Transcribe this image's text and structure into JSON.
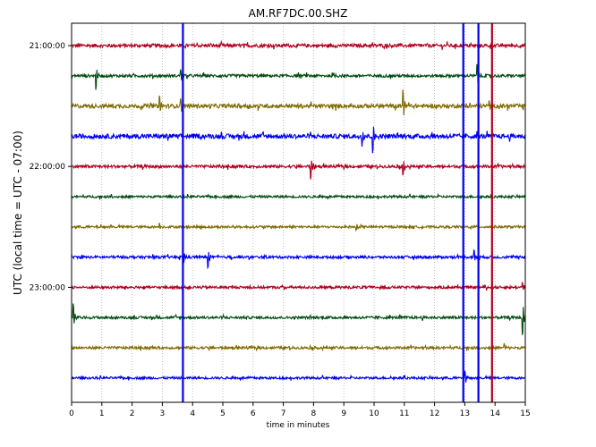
{
  "chart_data": {
    "type": "line",
    "title": "AM.RF7DC.00.SHZ",
    "xlabel": "time in minutes",
    "ylabel": "UTC (local time = UTC - 07:00)",
    "xlim": [
      0,
      15
    ],
    "x_ticks": [
      "0",
      "1",
      "2",
      "3",
      "4",
      "5",
      "6",
      "7",
      "8",
      "9",
      "10",
      "11",
      "12",
      "13",
      "14",
      "15"
    ],
    "y_ticks": [
      "21:00:00",
      "22:00:00",
      "23:00:00"
    ],
    "grid": "vertical dotted",
    "series_colors": [
      "#b1001e",
      "#004b10",
      "#7f6a00",
      "#0000f0"
    ],
    "traces": [
      {
        "row": 0,
        "color": "#b1001e",
        "baseline_noise": 0.12,
        "events": []
      },
      {
        "row": 1,
        "color": "#004b10",
        "baseline_noise": 0.1,
        "events": [
          {
            "t": 0.8,
            "amp": -0.9
          },
          {
            "t": 1.8,
            "amp": 0
          },
          {
            "t": 3.6,
            "amp": 0.5
          },
          {
            "t": 11.4,
            "amp": 0
          },
          {
            "t": 13.4,
            "amp": 0.8
          }
        ]
      },
      {
        "row": 2,
        "color": "#7f6a00",
        "baseline_noise": 0.14,
        "events": [
          {
            "t": 2.9,
            "amp": 0.7
          },
          {
            "t": 3.6,
            "amp": 0.6
          },
          {
            "t": 10.95,
            "amp": 1.2
          },
          {
            "t": 13.8,
            "amp": 0.3
          }
        ]
      },
      {
        "row": 3,
        "color": "#0000f0",
        "baseline_noise": 0.16,
        "events": [
          {
            "t": 9.6,
            "amp": -0.6
          },
          {
            "t": 9.95,
            "amp": -1.1
          }
        ]
      },
      {
        "row": 4,
        "color": "#b1001e",
        "baseline_noise": 0.1,
        "events": [
          {
            "t": 7.9,
            "amp": -0.9
          },
          {
            "t": 10.95,
            "amp": -0.6
          }
        ]
      },
      {
        "row": 5,
        "color": "#004b10",
        "baseline_noise": 0.08,
        "events": []
      },
      {
        "row": 6,
        "color": "#7f6a00",
        "baseline_noise": 0.08,
        "events": [
          {
            "t": 2.9,
            "amp": 0.3
          },
          {
            "t": 9.4,
            "amp": -0.3
          }
        ]
      },
      {
        "row": 7,
        "color": "#0000f0",
        "baseline_noise": 0.09,
        "events": [
          {
            "t": 3.7,
            "amp": -0.4
          },
          {
            "t": 4.5,
            "amp": -0.8
          },
          {
            "t": 13.3,
            "amp": 0.5
          }
        ]
      },
      {
        "row": 8,
        "color": "#b1001e",
        "baseline_noise": 0.09,
        "events": [
          {
            "t": 14.9,
            "amp": 0.4
          }
        ]
      },
      {
        "row": 9,
        "color": "#004b10",
        "baseline_noise": 0.09,
        "events": [
          {
            "t": 0.05,
            "amp": 0.9
          },
          {
            "t": 14.9,
            "amp": -1.3
          }
        ]
      },
      {
        "row": 10,
        "color": "#7f6a00",
        "baseline_noise": 0.09,
        "events": [
          {
            "t": 14.3,
            "amp": 0.3
          }
        ]
      },
      {
        "row": 11,
        "color": "#0000f0",
        "baseline_noise": 0.08,
        "events": [
          {
            "t": 13.0,
            "amp": 0.5
          }
        ]
      }
    ],
    "spikes": [
      {
        "t": 3.68,
        "color": "#0000f0",
        "from_row": 0,
        "to_row": 12
      },
      {
        "t": 12.95,
        "color": "#0000f0",
        "from_row": 0,
        "to_row": 12
      },
      {
        "t": 13.45,
        "color": "#0000f0",
        "from_row": 0,
        "to_row": 12
      },
      {
        "t": 13.9,
        "color": "#b1001e",
        "from_row": 0,
        "to_row": 12
      }
    ]
  }
}
